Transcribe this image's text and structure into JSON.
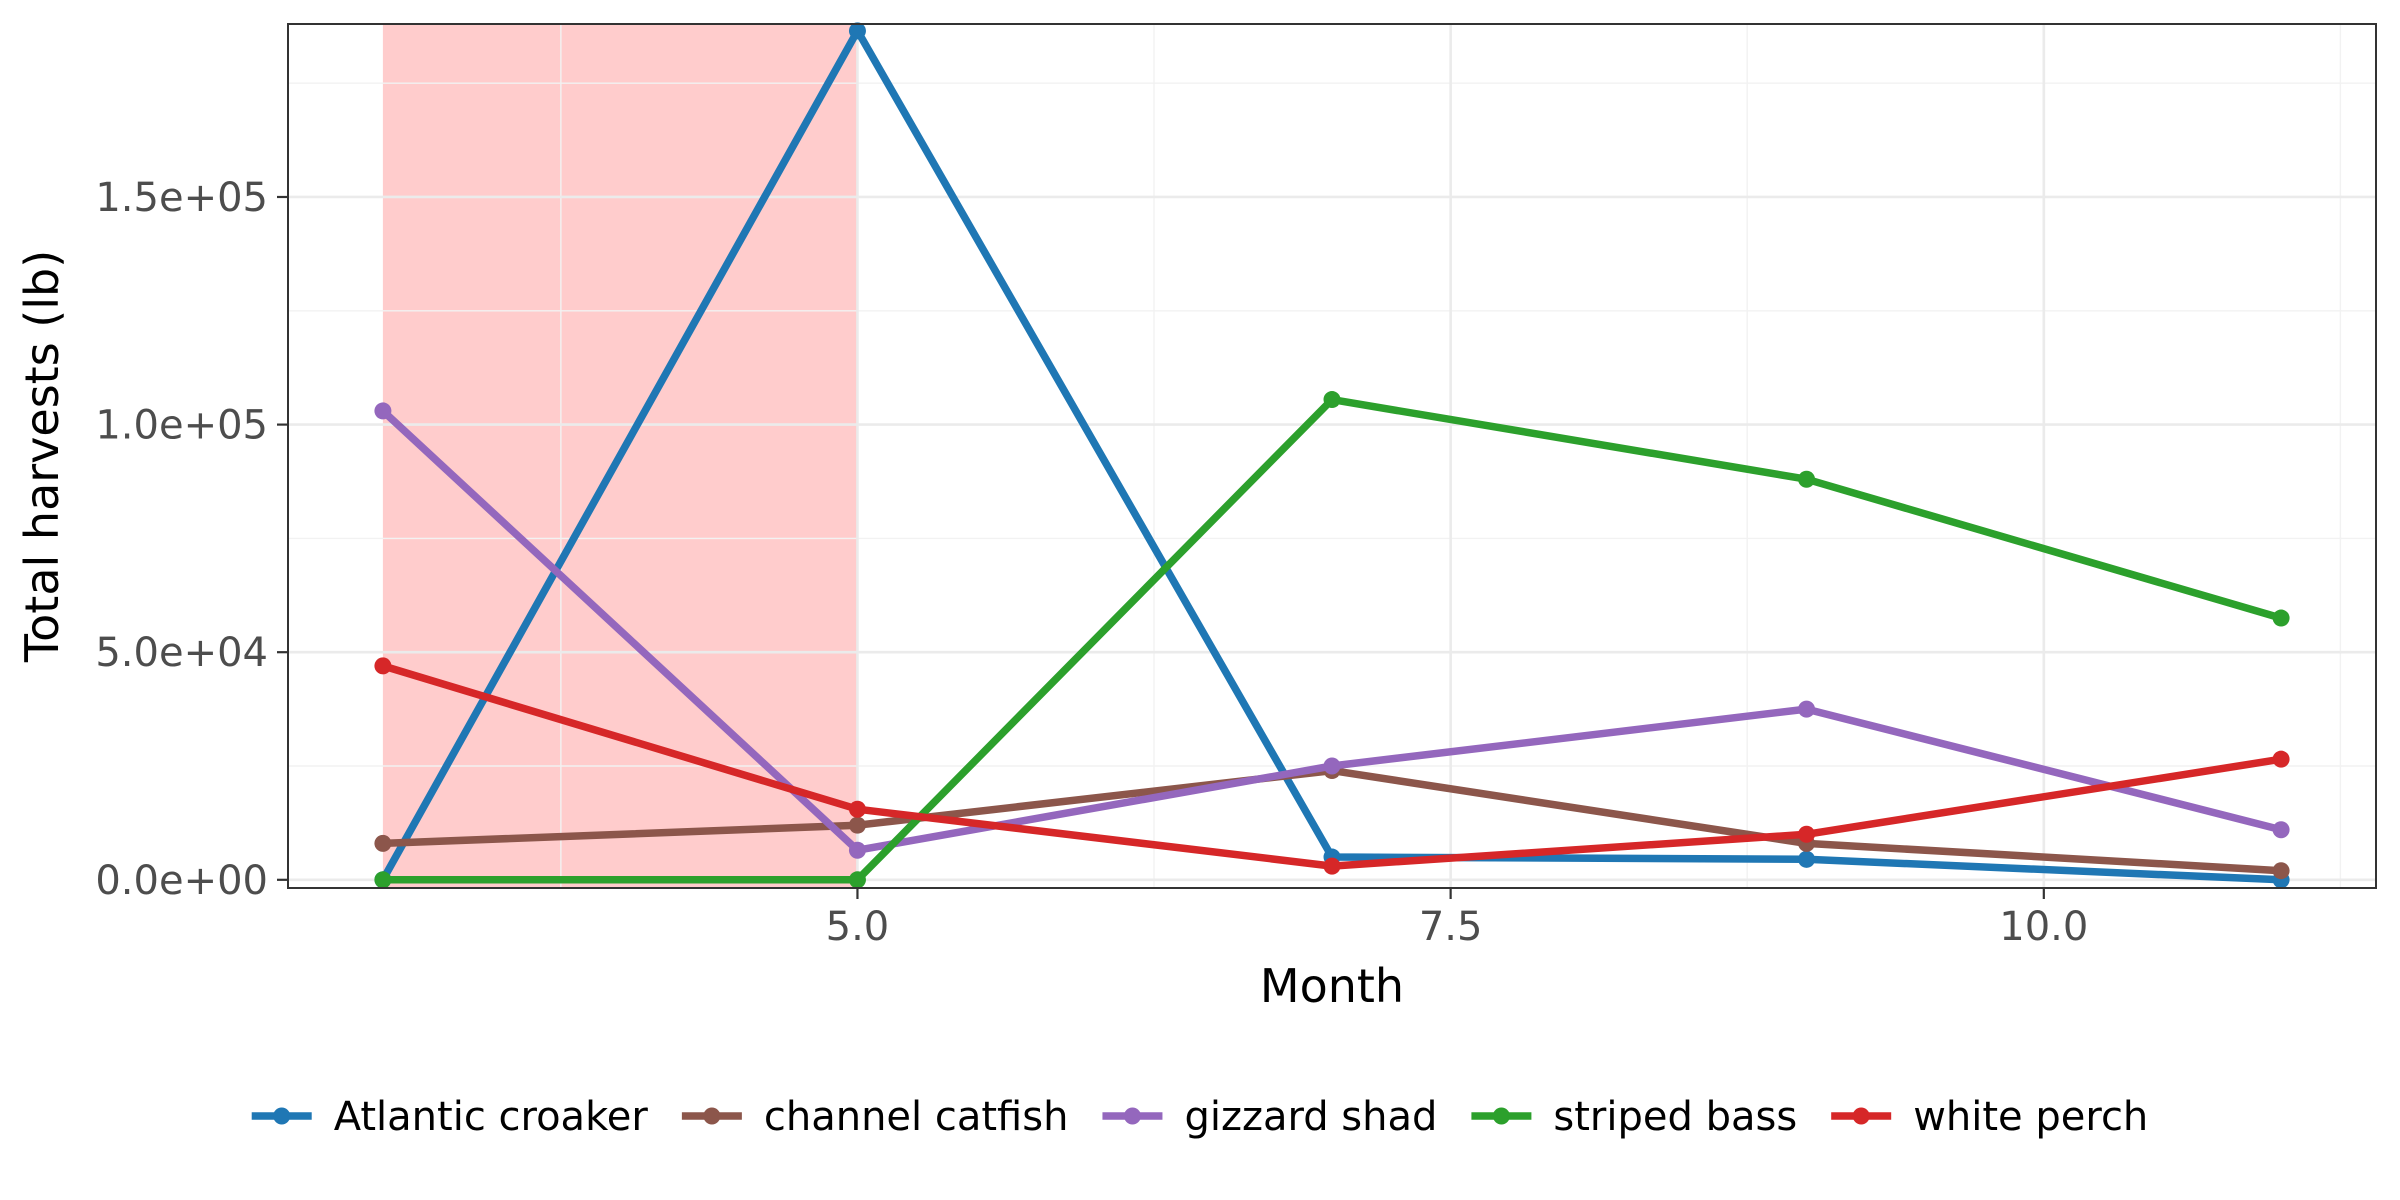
{
  "chart_data": {
    "type": "line",
    "xlabel": "Month",
    "ylabel": "Total harvests (lb)",
    "xlim": [
      2.6,
      11.4
    ],
    "ylim": [
      -1800,
      188000
    ],
    "x_ticks": [
      {
        "value": 5.0,
        "label": "5.0"
      },
      {
        "value": 7.5,
        "label": "7.5"
      },
      {
        "value": 10.0,
        "label": "10.0"
      }
    ],
    "x_minor": [
      3.75,
      6.25,
      8.75,
      11.25
    ],
    "y_ticks": [
      {
        "value": 0,
        "label": "0.0e+00"
      },
      {
        "value": 50000,
        "label": "5.0e+04"
      },
      {
        "value": 100000,
        "label": "1.0e+05"
      },
      {
        "value": 150000,
        "label": "1.5e+05"
      }
    ],
    "y_minor": [
      25000,
      75000,
      125000,
      175000
    ],
    "grid": true,
    "legend_position": "bottom",
    "highlight_band": {
      "x_start": 3,
      "x_end": 5,
      "color": "#ffcccc"
    },
    "x": [
      3,
      5,
      7,
      9,
      11
    ],
    "series": [
      {
        "name": "Atlantic croaker",
        "color": "#1f77b4",
        "values": [
          0,
          186500,
          5000,
          4500,
          0
        ]
      },
      {
        "name": "channel catfish",
        "color": "#8c564b",
        "values": [
          8000,
          12000,
          24000,
          8000,
          2000
        ]
      },
      {
        "name": "gizzard shad",
        "color": "#9467bd",
        "values": [
          103000,
          6500,
          25000,
          37500,
          11000
        ]
      },
      {
        "name": "striped bass",
        "color": "#2ca02c",
        "values": [
          0,
          0,
          105500,
          88000,
          57500
        ]
      },
      {
        "name": "white perch",
        "color": "#d62728",
        "values": [
          47000,
          15500,
          3000,
          10000,
          26500
        ]
      }
    ]
  }
}
